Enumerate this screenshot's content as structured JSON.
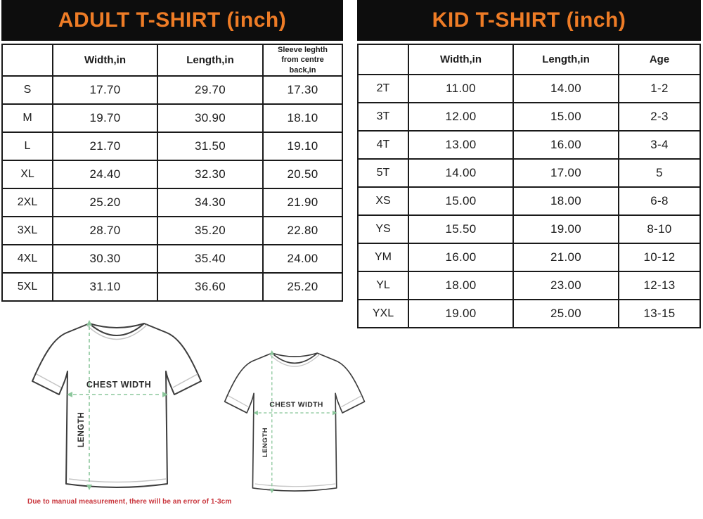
{
  "adult_table": {
    "title": "ADULT T-SHIRT (inch)",
    "columns": [
      "",
      "Width,in",
      "Length,in",
      "Sleeve leghth from centre back,in"
    ],
    "rows": [
      [
        "S",
        "17.70",
        "29.70",
        "17.30"
      ],
      [
        "M",
        "19.70",
        "30.90",
        "18.10"
      ],
      [
        "L",
        "21.70",
        "31.50",
        "19.10"
      ],
      [
        "XL",
        "24.40",
        "32.30",
        "20.50"
      ],
      [
        "2XL",
        "25.20",
        "34.30",
        "21.90"
      ],
      [
        "3XL",
        "28.70",
        "35.20",
        "22.80"
      ],
      [
        "4XL",
        "30.30",
        "35.40",
        "24.00"
      ],
      [
        "5XL",
        "31.10",
        "36.60",
        "25.20"
      ]
    ]
  },
  "kid_table": {
    "title": "KID T-SHIRT (inch)",
    "columns": [
      "",
      "Width,in",
      "Length,in",
      "Age"
    ],
    "rows": [
      [
        "2T",
        "11.00",
        "14.00",
        "1-2"
      ],
      [
        "3T",
        "12.00",
        "15.00",
        "2-3"
      ],
      [
        "4T",
        "13.00",
        "16.00",
        "3-4"
      ],
      [
        "5T",
        "14.00",
        "17.00",
        "5"
      ],
      [
        "XS",
        "15.00",
        "18.00",
        "6-8"
      ],
      [
        "YS",
        "15.50",
        "19.00",
        "8-10"
      ],
      [
        "YM",
        "16.00",
        "21.00",
        "10-12"
      ],
      [
        "YL",
        "18.00",
        "23.00",
        "12-13"
      ],
      [
        "YXL",
        "19.00",
        "25.00",
        "13-15"
      ]
    ]
  },
  "diagram": {
    "chest_width_label": "CHEST WIDTH",
    "length_label": "LENGTH",
    "note": "Due to manual measurement, there will be an error of 1-3cm"
  },
  "colors": {
    "title_orange": "#ee7c26",
    "header_black": "#0d0d0d",
    "note_red": "#c9353c",
    "measure_green": "#8cc79c"
  }
}
